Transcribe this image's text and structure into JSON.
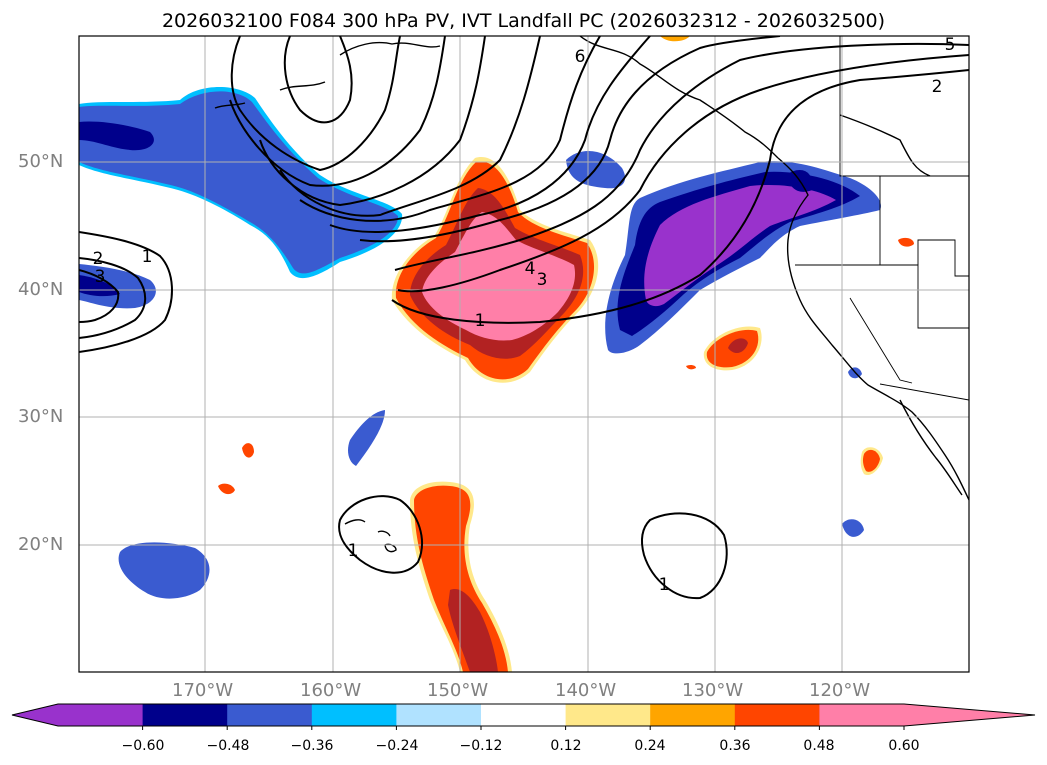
{
  "title": "2026032100 F084 300 hPa PV, IVT Landfall PC (2026032312 - 2026032500)",
  "map": {
    "lat_labels": [
      "50°N",
      "40°N",
      "30°N",
      "20°N"
    ],
    "lon_labels": [
      "170°W",
      "160°W",
      "150°W",
      "140°W",
      "130°W",
      "120°W"
    ],
    "contour_labels": [
      "6",
      "5",
      "2",
      "4",
      "3",
      "1",
      "2",
      "3",
      "1",
      "1",
      "1"
    ]
  },
  "colorbar": {
    "ticks": [
      "−0.60",
      "−0.48",
      "−0.36",
      "−0.24",
      "−0.12",
      "0.12",
      "0.24",
      "0.36",
      "0.48",
      "0.60"
    ],
    "colors": [
      "#9932cc",
      "#00008b",
      "#3a5bd0",
      "#00bfff",
      "#b0e2ff",
      "#ffffff",
      "#ffe88a",
      "#ffa500",
      "#ff4500",
      "#b22222",
      "#ff7fa8"
    ]
  }
}
